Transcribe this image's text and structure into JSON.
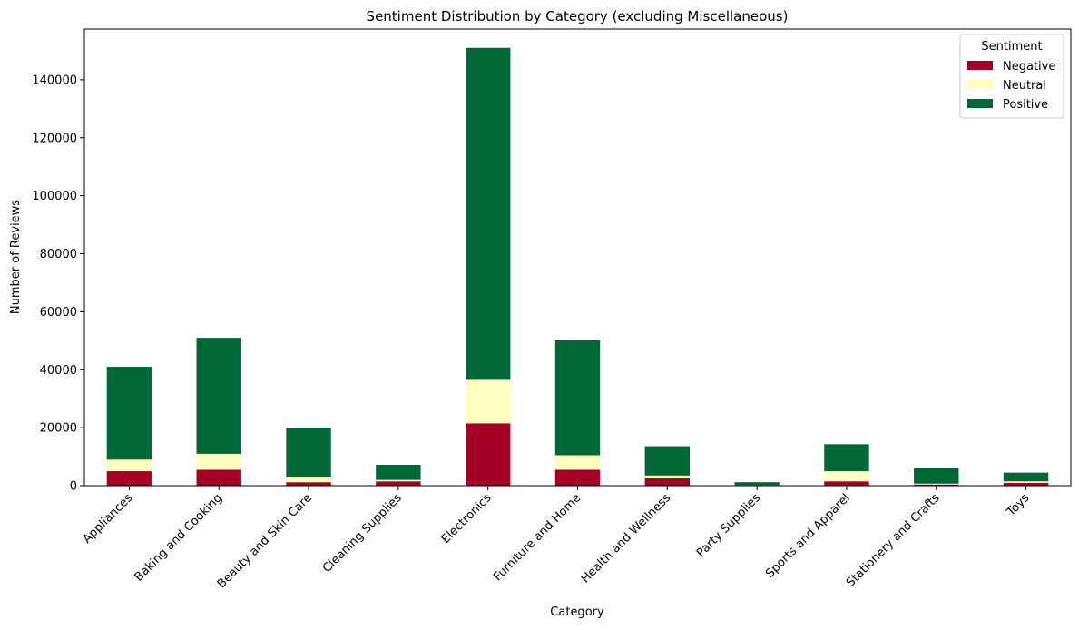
{
  "chart_data": {
    "type": "bar",
    "stacked": true,
    "title": "Sentiment Distribution by Category (excluding Miscellaneous)",
    "xlabel": "Category",
    "ylabel": "Number of Reviews",
    "ylim": [
      0,
      157500
    ],
    "yticks": [
      0,
      20000,
      40000,
      60000,
      80000,
      100000,
      120000,
      140000
    ],
    "grid": false,
    "legend": {
      "title": "Sentiment",
      "placement": "top-right"
    },
    "categories": [
      "Appliances",
      "Baking and Cooking",
      "Beauty and Skin Care",
      "Cleaning Supplies",
      "Electronics",
      "Furniture and Home",
      "Health and Wellness",
      "Party Supplies",
      "Sports and Apparel",
      "Stationery and Crafts",
      "Toys"
    ],
    "series": [
      {
        "name": "Negative",
        "color": "#a50026",
        "values": [
          5000,
          5500,
          1200,
          1500,
          21500,
          5500,
          2500,
          100,
          1500,
          400,
          1000
        ]
      },
      {
        "name": "Neutral",
        "color": "#ffffbf",
        "values": [
          4000,
          5500,
          1700,
          500,
          15000,
          5000,
          1000,
          100,
          3500,
          300,
          500
        ]
      },
      {
        "name": "Positive",
        "color": "#006837",
        "values": [
          32000,
          40000,
          17000,
          5200,
          114500,
          39700,
          10100,
          1000,
          9300,
          5300,
          3000
        ]
      }
    ]
  }
}
